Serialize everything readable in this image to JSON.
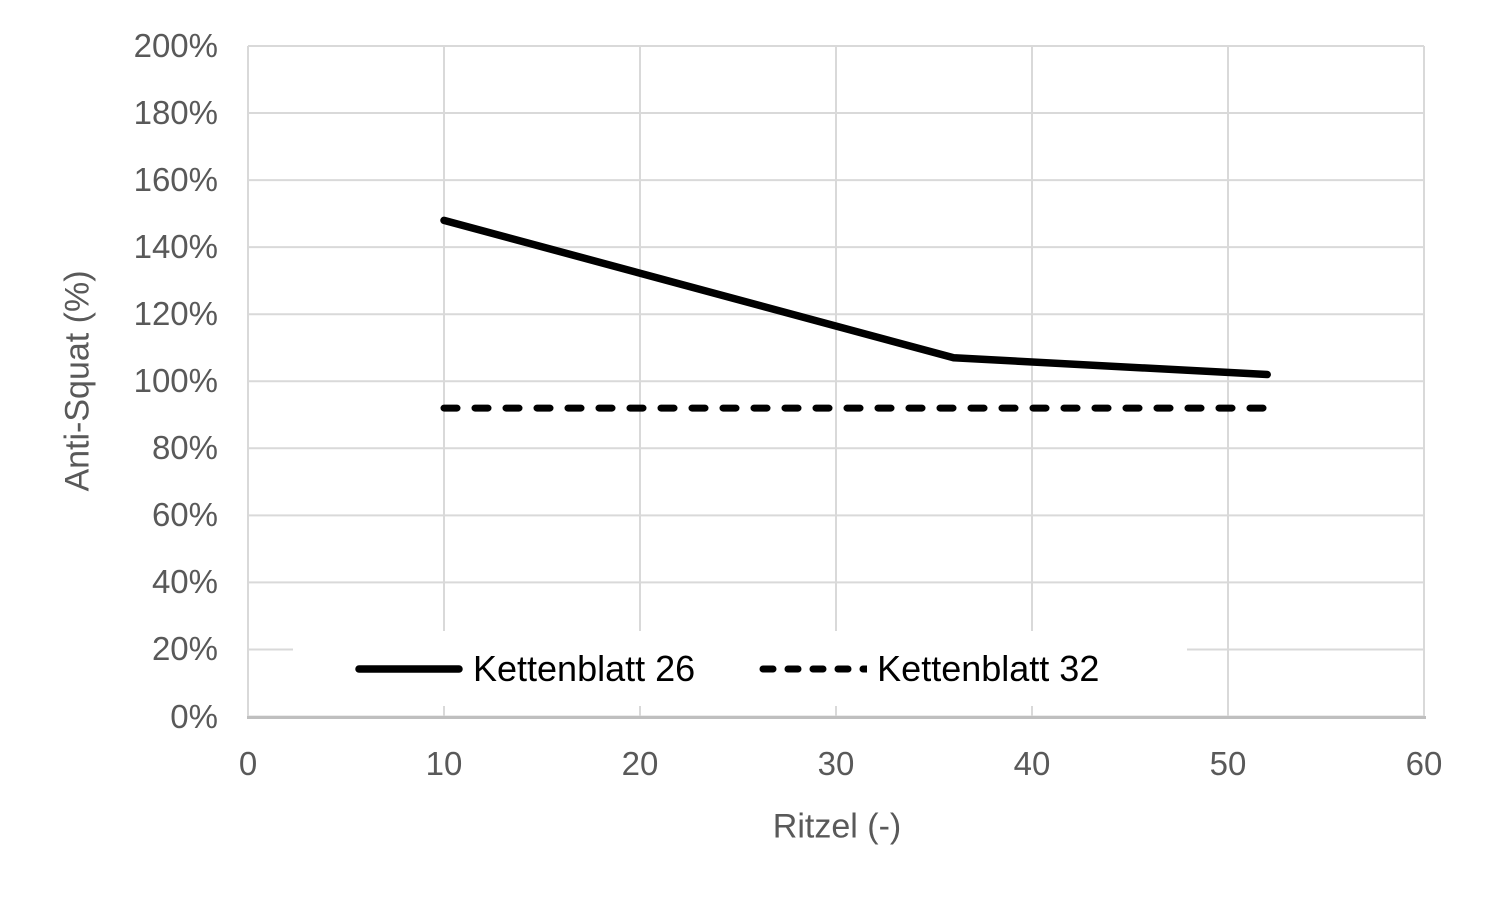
{
  "chart_data": {
    "type": "line",
    "title": "",
    "xlabel": "Ritzel (-)",
    "ylabel": "Anti-Squat (%)",
    "x_axis": {
      "min": 0,
      "max": 60,
      "ticks": [
        0,
        10,
        20,
        30,
        40,
        50,
        60
      ],
      "tick_suffix": ""
    },
    "y_axis": {
      "min": 0,
      "max": 200,
      "ticks": [
        0,
        20,
        40,
        60,
        80,
        100,
        120,
        140,
        160,
        180,
        200
      ],
      "tick_suffix": "%"
    },
    "grid": "on",
    "legend_position": "inside-bottom",
    "series": [
      {
        "name": "Kettenblatt 26",
        "style": "solid",
        "color": "#000000",
        "x": [
          10,
          36,
          52
        ],
        "values": [
          148,
          107,
          102
        ]
      },
      {
        "name": "Kettenblatt 32",
        "style": "dashed",
        "color": "#000000",
        "x": [
          10,
          52
        ],
        "values": [
          92,
          92
        ]
      }
    ],
    "colors": {
      "gridline": "#d9d9d9",
      "axis_line": "#bfbfbf",
      "tick_text": "#595959",
      "legend_text": "#000000",
      "background": "#ffffff"
    }
  }
}
